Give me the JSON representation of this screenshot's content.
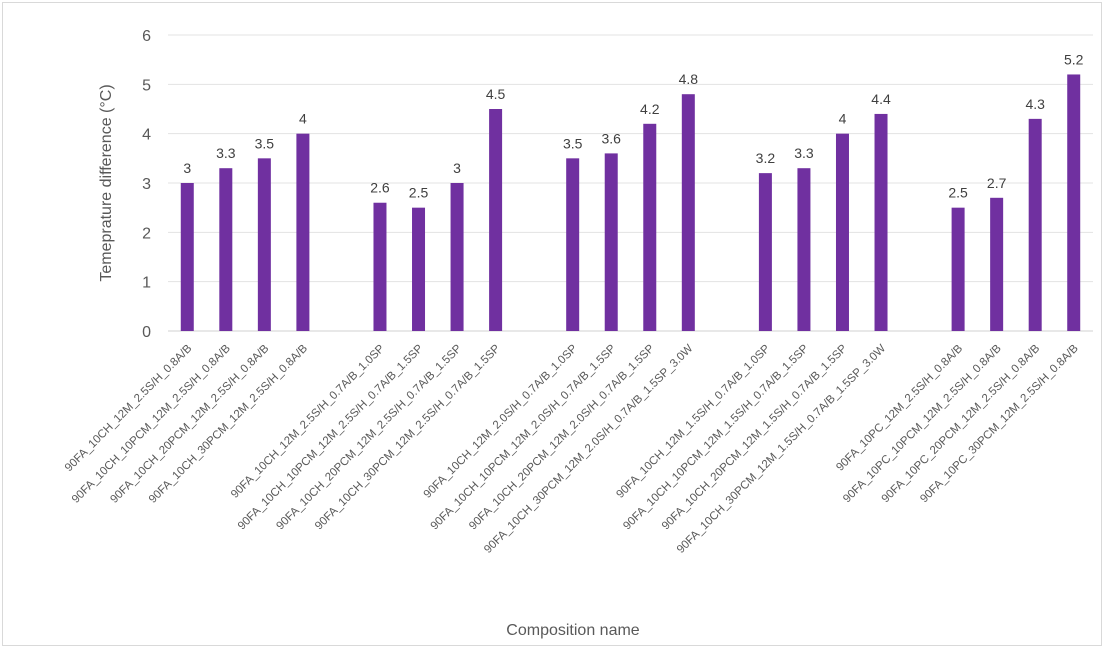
{
  "chart_data": {
    "type": "bar",
    "title": "",
    "xlabel": "Composition name",
    "ylabel": "Temeprature difference (°C)",
    "ylim": [
      0,
      6
    ],
    "yticks": [
      0,
      1,
      2,
      3,
      4,
      5,
      6
    ],
    "grid": true,
    "legend": "none",
    "bar_color": "#7030a0",
    "categories": [
      "90FA_10CH_12M_2.5S/H_0.8A/B",
      "90FA_10CH_10PCM_12M_2.5S/H_0.8A/B",
      "90FA_10CH_20PCM_12M_2.5S/H_0.8A/B",
      "90FA_10CH_30PCM_12M_2.5S/H_0.8A/B",
      "",
      "90FA_10CH_12M_2.5S/H_0.7A/B_1.0SP",
      "90FA_10CH_10PCM_12M_2.5S/H_0.7A/B_1.5SP",
      "90FA_10CH_20PCM_12M_2.5S/H_0.7A/B_1.5SP",
      "90FA_10CH_30PCM_12M_2.5S/H_0.7A/B_1.5SP",
      "",
      "90FA_10CH_12M_2.0S/H_0.7A/B_1.0SP",
      "90FA_10CH_10PCM_12M_2.0S/H_0.7A/B_1.5SP",
      "90FA_10CH_20PCM_12M_2.0S/H_0.7A/B_1.5SP",
      "90FA_10CH_30PCM_12M_2.0S/H_0.7A/B_1.5SP_3.0W",
      "",
      "90FA_10CH_12M_1.5S/H_0.7A/B_1.0SP",
      "90FA_10CH_10PCM_12M_1.5S/H_0.7A/B_1.5SP",
      "90FA_10CH_20PCM_12M_1.5S/H_0.7A/B_1.5SP",
      "90FA_10CH_30PCM_12M_1.5S/H_0.7A/B_1.5SP_3.0W",
      "",
      "90FA_10PC_12M_2.5S/H_0.8A/B",
      "90FA_10PC_10PCM_12M_2.5S/H_0.8A/B",
      "90FA_10PC_20PCM_12M_2.5S/H_0.8A/B",
      "90FA_10PC_30PCM_12M_2.5S/H_0.8A/B"
    ],
    "values": [
      3,
      3.3,
      3.5,
      4,
      null,
      2.6,
      2.5,
      3,
      4.5,
      null,
      3.5,
      3.6,
      4.2,
      4.8,
      null,
      3.2,
      3.3,
      4,
      4.4,
      null,
      2.5,
      2.7,
      4.3,
      5.2
    ],
    "data_labels": [
      "3",
      "3.3",
      "3.5",
      "4",
      "",
      "2.6",
      "2.5",
      "3",
      "4.5",
      "",
      "3.5",
      "3.6",
      "4.2",
      "4.8",
      "",
      "3.2",
      "3.3",
      "4",
      "4.4",
      "",
      "2.5",
      "2.7",
      "4.3",
      "5.2"
    ]
  }
}
